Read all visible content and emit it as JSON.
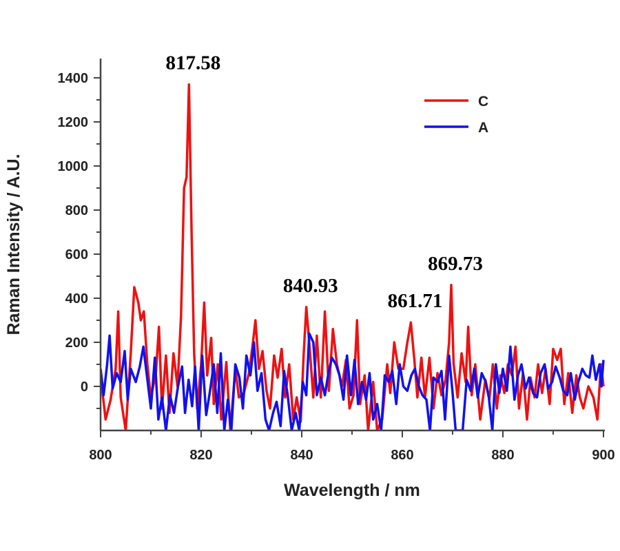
{
  "chart_data": {
    "type": "line",
    "title": "",
    "xlabel": "Wavelength / nm",
    "ylabel": "Raman Intensity / A.U.",
    "xlim": [
      800,
      900
    ],
    "ylim": [
      -200,
      1400
    ],
    "xticks": [
      800,
      820,
      840,
      860,
      880,
      900
    ],
    "yticks": [
      0,
      200,
      400,
      600,
      800,
      1000,
      1200,
      1400
    ],
    "grid": false,
    "legend_position": "top-right",
    "annotations": [
      {
        "text": "817.58",
        "x": 817.58,
        "y": 1370
      },
      {
        "text": "840.93",
        "x": 840.93,
        "y": 360
      },
      {
        "text": "861.71",
        "x": 861.71,
        "y": 290
      },
      {
        "text": "869.73",
        "x": 869.73,
        "y": 460
      }
    ],
    "series": [
      {
        "name": "C",
        "color": "#ee1111",
        "points": [
          [
            800,
            50
          ],
          [
            801,
            -150
          ],
          [
            802,
            -60
          ],
          [
            803,
            80
          ],
          [
            803.5,
            340
          ],
          [
            804,
            -50
          ],
          [
            805,
            -200
          ],
          [
            806,
            150
          ],
          [
            806.7,
            450
          ],
          [
            807.5,
            380
          ],
          [
            808,
            300
          ],
          [
            808.6,
            340
          ],
          [
            809.3,
            100
          ],
          [
            810,
            -50
          ],
          [
            811,
            60
          ],
          [
            811.6,
            270
          ],
          [
            812.2,
            -100
          ],
          [
            813,
            140
          ],
          [
            813.7,
            -120
          ],
          [
            814.5,
            150
          ],
          [
            815.3,
            0
          ],
          [
            816,
            320
          ],
          [
            816.6,
            900
          ],
          [
            817.1,
            950
          ],
          [
            817.58,
            1370
          ],
          [
            818.1,
            700
          ],
          [
            818.6,
            150
          ],
          [
            819.2,
            -100
          ],
          [
            820,
            100
          ],
          [
            820.6,
            380
          ],
          [
            821.2,
            50
          ],
          [
            822,
            220
          ],
          [
            822.5,
            -80
          ],
          [
            823.3,
            100
          ],
          [
            824,
            -150
          ],
          [
            825,
            110
          ],
          [
            825.8,
            -200
          ],
          [
            826.8,
            80
          ],
          [
            827.5,
            -50
          ],
          [
            828.5,
            -30
          ],
          [
            829.5,
            60
          ],
          [
            830.3,
            200
          ],
          [
            830.8,
            300
          ],
          [
            831.5,
            80
          ],
          [
            832.2,
            160
          ],
          [
            833,
            -20
          ],
          [
            833.7,
            -100
          ],
          [
            834.5,
            140
          ],
          [
            835.2,
            40
          ],
          [
            836,
            170
          ],
          [
            836.7,
            -50
          ],
          [
            837.5,
            100
          ],
          [
            838.3,
            -150
          ],
          [
            839,
            -50
          ],
          [
            839.8,
            -160
          ],
          [
            840.4,
            150
          ],
          [
            840.9,
            360
          ],
          [
            841.5,
            200
          ],
          [
            842.3,
            -50
          ],
          [
            843,
            230
          ],
          [
            843.8,
            -50
          ],
          [
            844.6,
            340
          ],
          [
            845.4,
            -20
          ],
          [
            846.2,
            260
          ],
          [
            847,
            100
          ],
          [
            848,
            0
          ],
          [
            848.8,
            120
          ],
          [
            849.5,
            -100
          ],
          [
            850.3,
            -40
          ],
          [
            851,
            300
          ],
          [
            851.6,
            -80
          ],
          [
            852.5,
            50
          ],
          [
            853.2,
            -200
          ],
          [
            854.2,
            20
          ],
          [
            855,
            -200
          ],
          [
            856,
            -150
          ],
          [
            857,
            100
          ],
          [
            857.6,
            -30
          ],
          [
            858.4,
            200
          ],
          [
            859.2,
            80
          ],
          [
            860.2,
            80
          ],
          [
            861,
            200
          ],
          [
            861.7,
            290
          ],
          [
            862.4,
            120
          ],
          [
            863,
            -50
          ],
          [
            863.8,
            130
          ],
          [
            864.5,
            -50
          ],
          [
            865.4,
            130
          ],
          [
            866.2,
            -100
          ],
          [
            867,
            60
          ],
          [
            867.8,
            -40
          ],
          [
            868.6,
            30
          ],
          [
            869.3,
            200
          ],
          [
            869.73,
            460
          ],
          [
            870.2,
            100
          ],
          [
            871,
            -50
          ],
          [
            871.8,
            150
          ],
          [
            872.6,
            20
          ],
          [
            873.1,
            270
          ],
          [
            873.8,
            -40
          ],
          [
            874.5,
            100
          ],
          [
            875.5,
            -150
          ],
          [
            876.5,
            30
          ],
          [
            877.3,
            -60
          ],
          [
            878,
            100
          ],
          [
            878.8,
            -100
          ],
          [
            879.5,
            50
          ],
          [
            880.3,
            -30
          ],
          [
            881,
            100
          ],
          [
            881.8,
            50
          ],
          [
            882.5,
            180
          ],
          [
            883.2,
            -100
          ],
          [
            884,
            60
          ],
          [
            884.8,
            -150
          ],
          [
            885.5,
            40
          ],
          [
            886.3,
            -50
          ],
          [
            887,
            100
          ],
          [
            887.8,
            -30
          ],
          [
            888.5,
            80
          ],
          [
            889.3,
            -80
          ],
          [
            890,
            170
          ],
          [
            890.8,
            120
          ],
          [
            891.5,
            170
          ],
          [
            892.2,
            -80
          ],
          [
            893,
            60
          ],
          [
            893.8,
            -120
          ],
          [
            894.6,
            50
          ],
          [
            895.3,
            -50
          ],
          [
            896,
            -100
          ],
          [
            897,
            0
          ],
          [
            898,
            -50
          ],
          [
            898.8,
            -150
          ],
          [
            899.5,
            100
          ],
          [
            900,
            0
          ]
        ]
      },
      {
        "name": "A",
        "color": "#1111ee",
        "points": [
          [
            800,
            80
          ],
          [
            800.6,
            -40
          ],
          [
            801.3,
            100
          ],
          [
            801.8,
            230
          ],
          [
            802.4,
            -10
          ],
          [
            803.2,
            60
          ],
          [
            804,
            20
          ],
          [
            804.8,
            160
          ],
          [
            805.4,
            -60
          ],
          [
            806,
            80
          ],
          [
            807,
            20
          ],
          [
            807.8,
            90
          ],
          [
            808.5,
            180
          ],
          [
            809.2,
            50
          ],
          [
            810,
            -100
          ],
          [
            810.8,
            130
          ],
          [
            811.5,
            -150
          ],
          [
            812.2,
            -50
          ],
          [
            813,
            -200
          ],
          [
            813.8,
            -40
          ],
          [
            814.6,
            -120
          ],
          [
            815.4,
            0
          ],
          [
            816.2,
            90
          ],
          [
            816.8,
            -120
          ],
          [
            817.5,
            30
          ],
          [
            818.2,
            -90
          ],
          [
            818.8,
            90
          ],
          [
            819.5,
            -200
          ],
          [
            820.2,
            140
          ],
          [
            821,
            -130
          ],
          [
            821.7,
            -30
          ],
          [
            822.5,
            100
          ],
          [
            823.2,
            -120
          ],
          [
            823.9,
            150
          ],
          [
            824.6,
            -200
          ],
          [
            825.3,
            -60
          ],
          [
            826,
            -200
          ],
          [
            826.8,
            100
          ],
          [
            827.6,
            40
          ],
          [
            828.3,
            -100
          ],
          [
            829,
            140
          ],
          [
            829.8,
            50
          ],
          [
            830.5,
            200
          ],
          [
            831.2,
            -20
          ],
          [
            832,
            60
          ],
          [
            832.8,
            -150
          ],
          [
            833.5,
            -200
          ],
          [
            834.3,
            -120
          ],
          [
            835,
            -70
          ],
          [
            835.8,
            -180
          ],
          [
            836.5,
            70
          ],
          [
            837.2,
            -40
          ],
          [
            838,
            -200
          ],
          [
            838.8,
            -120
          ],
          [
            839.5,
            -200
          ],
          [
            840.2,
            20
          ],
          [
            840.9,
            -40
          ],
          [
            841.5,
            240
          ],
          [
            842.3,
            200
          ],
          [
            843,
            -40
          ],
          [
            843.8,
            40
          ],
          [
            844.6,
            -40
          ],
          [
            845.3,
            60
          ],
          [
            846,
            130
          ],
          [
            846.8,
            100
          ],
          [
            847.5,
            50
          ],
          [
            848.3,
            -60
          ],
          [
            849,
            140
          ],
          [
            849.8,
            -40
          ],
          [
            850.5,
            120
          ],
          [
            851.2,
            -80
          ],
          [
            852,
            20
          ],
          [
            852.8,
            -60
          ],
          [
            853.5,
            60
          ],
          [
            854.2,
            -150
          ],
          [
            855,
            -80
          ],
          [
            855.8,
            -200
          ],
          [
            856.5,
            50
          ],
          [
            857.3,
            20
          ],
          [
            858,
            70
          ],
          [
            858.8,
            -80
          ],
          [
            859.5,
            100
          ],
          [
            860.2,
            0
          ],
          [
            861,
            -20
          ],
          [
            861.8,
            50
          ],
          [
            862.5,
            80
          ],
          [
            863.3,
            0
          ],
          [
            864,
            -40
          ],
          [
            864.8,
            -60
          ],
          [
            865.5,
            -200
          ],
          [
            866.2,
            40
          ],
          [
            867,
            20
          ],
          [
            867.8,
            70
          ],
          [
            868.5,
            -150
          ],
          [
            869.3,
            140
          ],
          [
            870,
            -30
          ],
          [
            870.6,
            -200
          ],
          [
            871.2,
            -200
          ],
          [
            872,
            -200
          ],
          [
            872.8,
            30
          ],
          [
            873.6,
            -20
          ],
          [
            874.3,
            80
          ],
          [
            875,
            -50
          ],
          [
            875.8,
            60
          ],
          [
            876.6,
            20
          ],
          [
            877.2,
            -50
          ],
          [
            877.9,
            -200
          ],
          [
            878.6,
            100
          ],
          [
            879.3,
            -30
          ],
          [
            880,
            80
          ],
          [
            880.8,
            -20
          ],
          [
            881.5,
            180
          ],
          [
            882.3,
            -60
          ],
          [
            883,
            50
          ],
          [
            883.7,
            100
          ],
          [
            884.5,
            -10
          ],
          [
            885.2,
            40
          ],
          [
            886,
            -30
          ],
          [
            886.8,
            -50
          ],
          [
            887.5,
            60
          ],
          [
            888.3,
            100
          ],
          [
            889,
            -10
          ],
          [
            889.8,
            20
          ],
          [
            890.5,
            90
          ],
          [
            891.3,
            40
          ],
          [
            892,
            -20
          ],
          [
            892.8,
            -40
          ],
          [
            893.5,
            60
          ],
          [
            894.3,
            -60
          ],
          [
            895,
            20
          ],
          [
            895.8,
            80
          ],
          [
            896.5,
            50
          ],
          [
            897.2,
            40
          ],
          [
            897.8,
            140
          ],
          [
            898.5,
            30
          ],
          [
            899.2,
            100
          ],
          [
            899.6,
            0
          ],
          [
            900,
            120
          ]
        ]
      }
    ]
  }
}
